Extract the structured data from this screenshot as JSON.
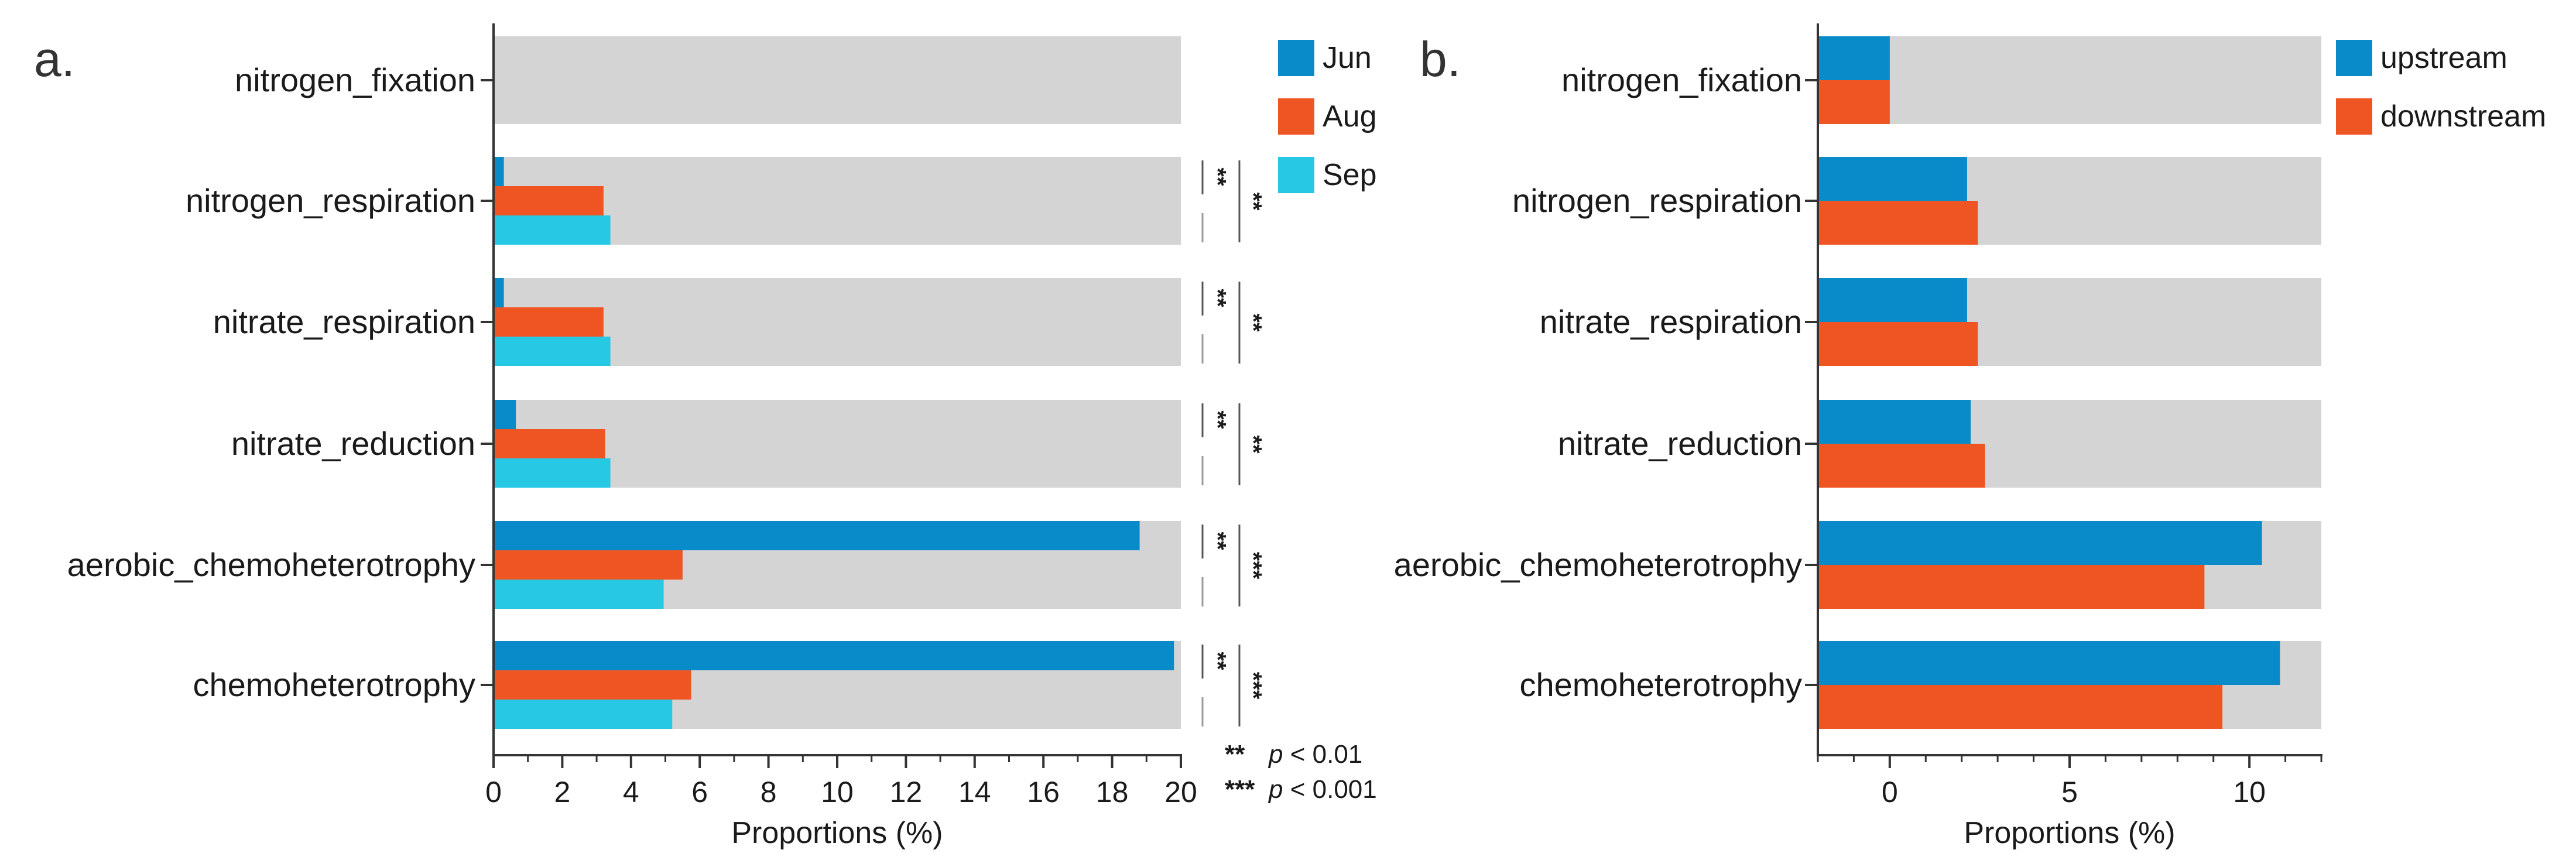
{
  "colors": {
    "background_bar": "#d4d4d4",
    "series": [
      "#0a8bc9",
      "#ef5523",
      "#27c8e3"
    ],
    "axis": "#333333",
    "sig_line_dark": "#555555",
    "sig_line_light": "#9a9a9a"
  },
  "chart_data": [
    {
      "type": "bar",
      "orientation": "horizontal",
      "panel_label": "a.",
      "categories": [
        "nitrogen_fixation",
        "nitrogen_respiration",
        "nitrate_respiration",
        "nitrate_reduction",
        "aerobic_chemoheterotrophy",
        "chemoheterotrophy"
      ],
      "series": [
        {
          "name": "Jun",
          "values": [
            0,
            0.3,
            0.3,
            0.65,
            18.8,
            19.8
          ]
        },
        {
          "name": "Aug",
          "values": [
            0,
            3.2,
            3.2,
            3.25,
            5.5,
            5.75
          ]
        },
        {
          "name": "Sep",
          "values": [
            0,
            3.4,
            3.4,
            3.4,
            4.95,
            5.2
          ]
        }
      ],
      "background_value": 20,
      "xlim": [
        0,
        20
      ],
      "xticks": [
        "0",
        "2",
        "4",
        "6",
        "8",
        "10",
        "12",
        "14",
        "16",
        "18",
        "20"
      ],
      "xlabel": "Proportions (%)",
      "legend_position": "top-right, outside",
      "significance": [
        {
          "category": "nitrogen_respiration",
          "pair_short": "**",
          "pair_long": "**"
        },
        {
          "category": "nitrate_respiration",
          "pair_short": "**",
          "pair_long": "**"
        },
        {
          "category": "nitrate_reduction",
          "pair_short": "**",
          "pair_long": "**"
        },
        {
          "category": "aerobic_chemoheterotrophy",
          "pair_short": "**",
          "pair_long": "***"
        },
        {
          "category": "chemoheterotrophy",
          "pair_short": "**",
          "pair_long": "***"
        }
      ],
      "significance_legend": [
        {
          "stars": "**",
          "p": "p",
          "rest": " < 0.01"
        },
        {
          "stars": "***",
          "p": "p",
          "rest": " < 0.001"
        }
      ]
    },
    {
      "type": "bar",
      "orientation": "horizontal",
      "panel_label": "b.",
      "categories": [
        "nitrogen_fixation",
        "nitrogen_respiration",
        "nitrate_respiration",
        "nitrate_reduction",
        "aerobic_chemoheterotrophy",
        "chemoheterotrophy"
      ],
      "series": [
        {
          "name": "upstream",
          "values": [
            0,
            2.15,
            2.15,
            2.25,
            10.35,
            10.85
          ]
        },
        {
          "name": "downstream",
          "values": [
            0,
            2.45,
            2.45,
            2.65,
            8.75,
            9.25
          ]
        }
      ],
      "background_value": 12,
      "xlim": [
        -2,
        12
      ],
      "xticks": [
        "0",
        "5",
        "10"
      ],
      "xlabel": "Proportions (%)",
      "legend_position": "top-right"
    }
  ]
}
